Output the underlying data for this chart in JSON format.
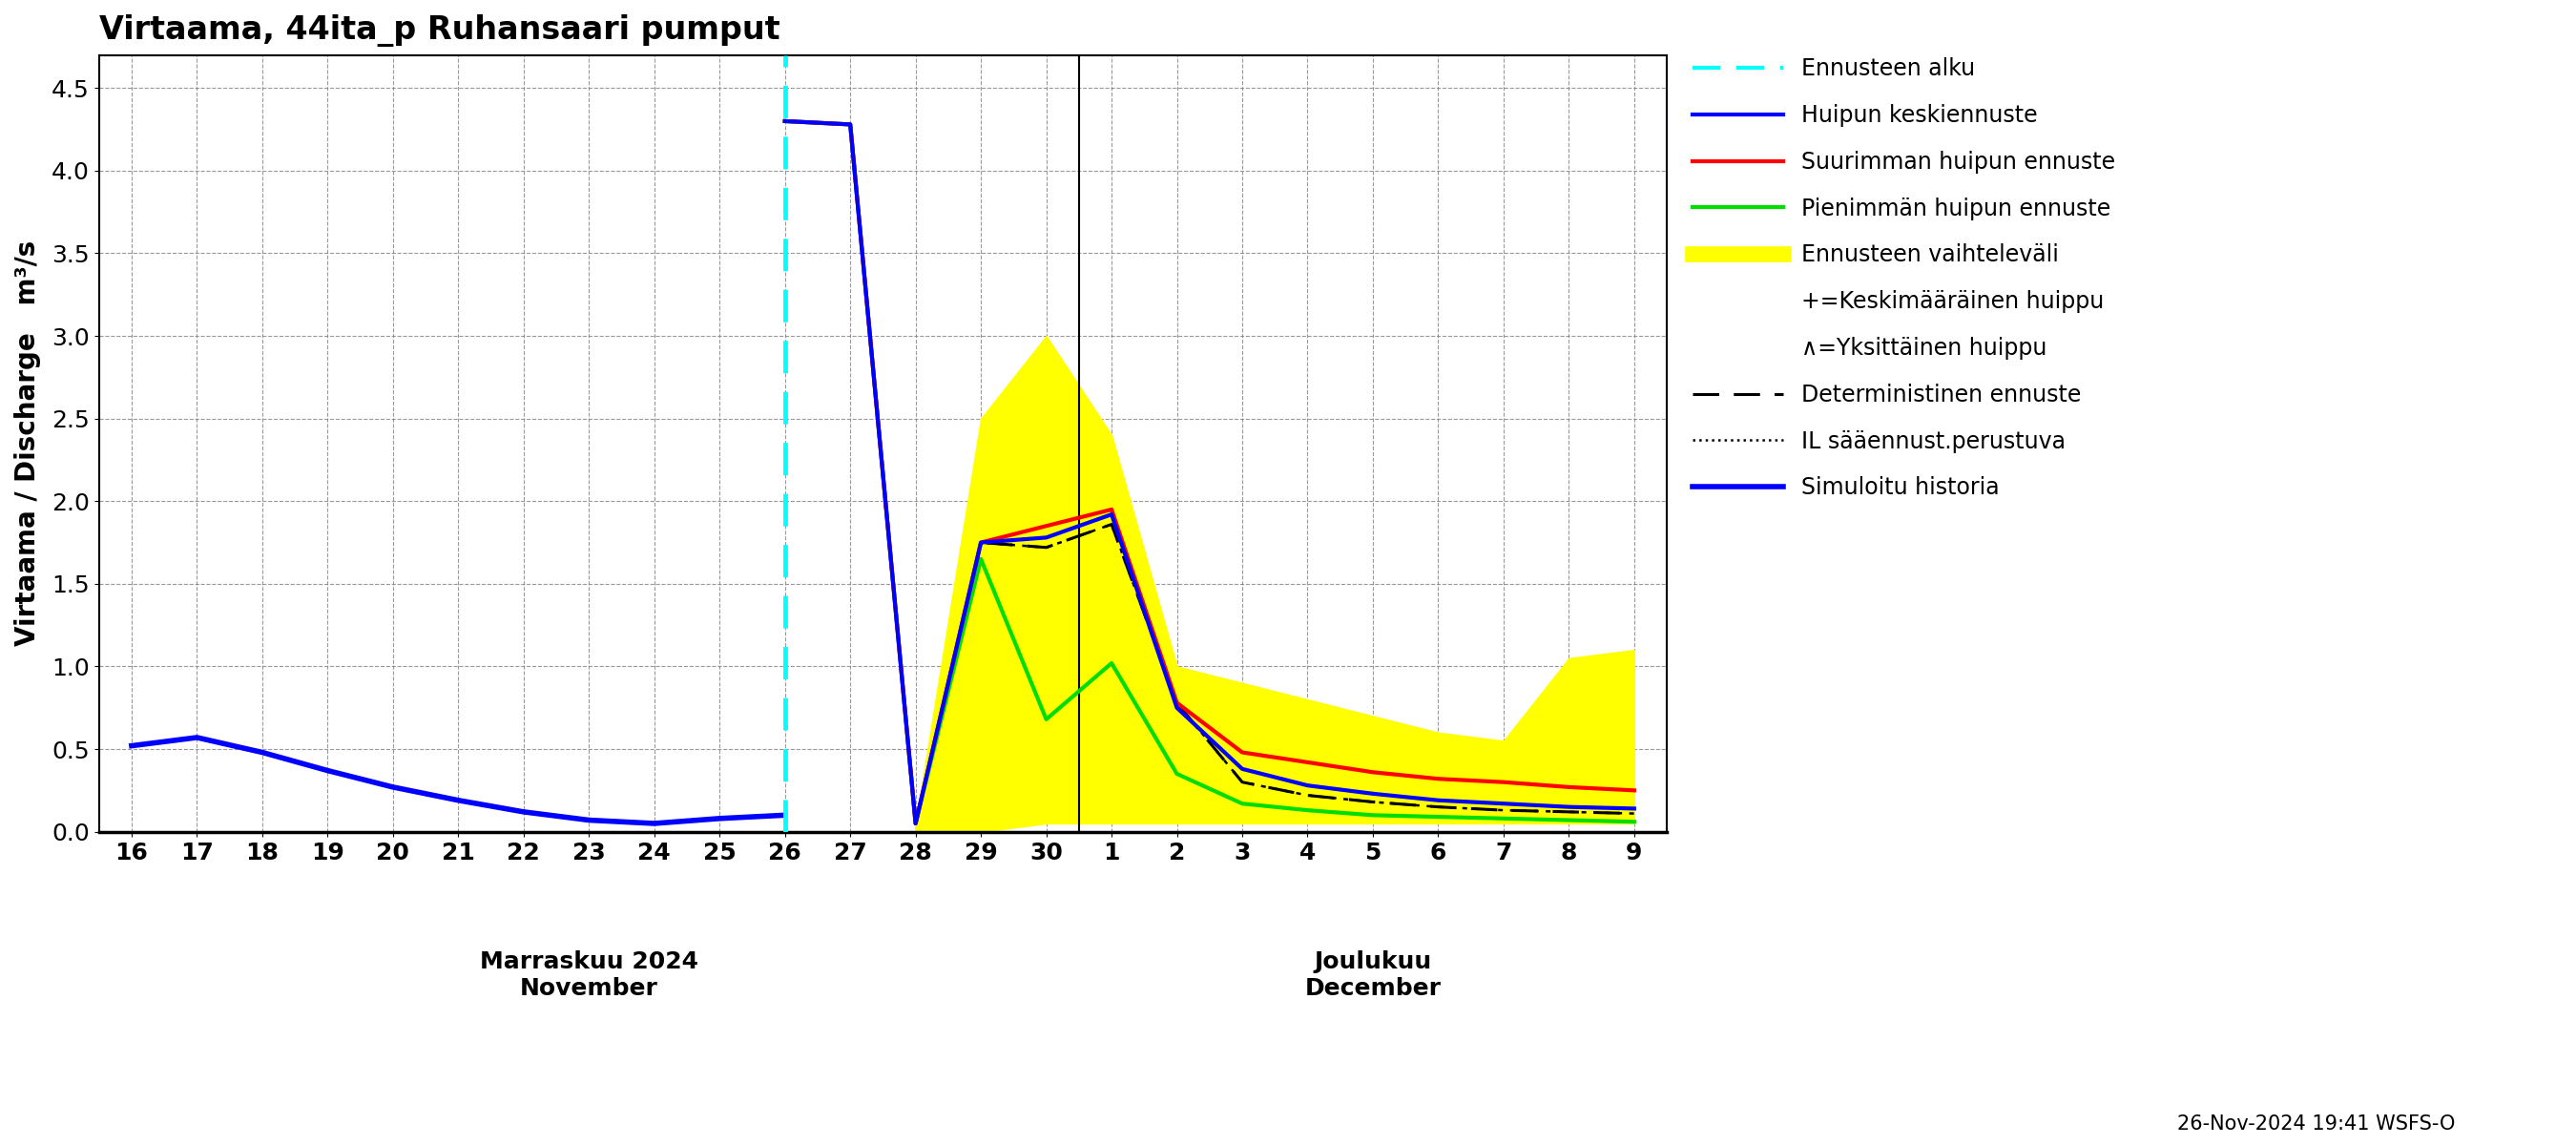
{
  "title": "Virtaama, 44ita_p Ruhansaari pumput",
  "ylabel": "Virtaama / Discharge   m³/s",
  "ylim": [
    0.0,
    4.7
  ],
  "yticks": [
    0.0,
    0.5,
    1.0,
    1.5,
    2.0,
    2.5,
    3.0,
    3.5,
    4.0,
    4.5
  ],
  "footnote": "26-Nov-2024 19:41 WSFS-O",
  "xlabel_nov": "Marraskuu 2024\nNovember",
  "xlabel_dec": "Joulukuu\nDecember",
  "history_x": [
    0,
    1,
    2,
    3,
    4,
    5,
    6,
    7,
    8,
    9,
    10
  ],
  "history_y": [
    0.52,
    0.57,
    0.48,
    0.37,
    0.27,
    0.19,
    0.12,
    0.07,
    0.05,
    0.08,
    0.1
  ],
  "forecast_x": [
    10,
    11,
    12,
    13,
    14,
    15,
    16,
    17,
    18,
    19,
    20,
    21,
    22,
    23
  ],
  "mean_y": [
    4.3,
    4.28,
    0.05,
    1.75,
    1.78,
    1.92,
    0.75,
    0.38,
    0.28,
    0.23,
    0.19,
    0.17,
    0.15,
    0.14
  ],
  "max_y": [
    4.3,
    4.28,
    0.05,
    1.75,
    1.85,
    1.95,
    0.78,
    0.48,
    0.42,
    0.36,
    0.32,
    0.3,
    0.27,
    0.25
  ],
  "min_y": [
    4.3,
    4.28,
    0.05,
    1.65,
    0.68,
    1.02,
    0.35,
    0.17,
    0.13,
    0.1,
    0.09,
    0.08,
    0.07,
    0.06
  ],
  "det_y": [
    4.3,
    4.28,
    0.05,
    1.75,
    1.72,
    1.86,
    0.78,
    0.3,
    0.22,
    0.18,
    0.15,
    0.13,
    0.12,
    0.11
  ],
  "il_y": [
    4.3,
    4.28,
    0.05,
    1.75,
    1.72,
    1.86,
    0.78,
    0.3,
    0.22,
    0.18,
    0.15,
    0.13,
    0.12,
    0.11
  ],
  "band_x": [
    10,
    11,
    12,
    13,
    14,
    15,
    16,
    17,
    18,
    19,
    20,
    21,
    22,
    23
  ],
  "band_upper": [
    4.3,
    4.28,
    0.05,
    2.5,
    3.0,
    2.4,
    1.0,
    0.9,
    0.8,
    0.7,
    0.6,
    0.55,
    1.05,
    1.1
  ],
  "band_lower": [
    4.3,
    4.28,
    0.0,
    0.0,
    0.05,
    0.05,
    0.05,
    0.05,
    0.05,
    0.05,
    0.05,
    0.05,
    0.05,
    0.05
  ],
  "tick_labels_nov": [
    "16",
    "17",
    "18",
    "19",
    "20",
    "21",
    "22",
    "23",
    "24",
    "25",
    "26",
    "27",
    "28",
    "29",
    "30"
  ],
  "tick_labels_dec": [
    "1",
    "2",
    "3",
    "4",
    "5",
    "6",
    "7",
    "8",
    "9"
  ],
  "color_history": "#0000ff",
  "color_mean": "#0000ff",
  "color_max": "#ff0000",
  "color_min": "#00dd00",
  "color_det": "#000000",
  "color_il": "#000000",
  "color_band": "#ffff00",
  "color_vline": "#00ffff"
}
